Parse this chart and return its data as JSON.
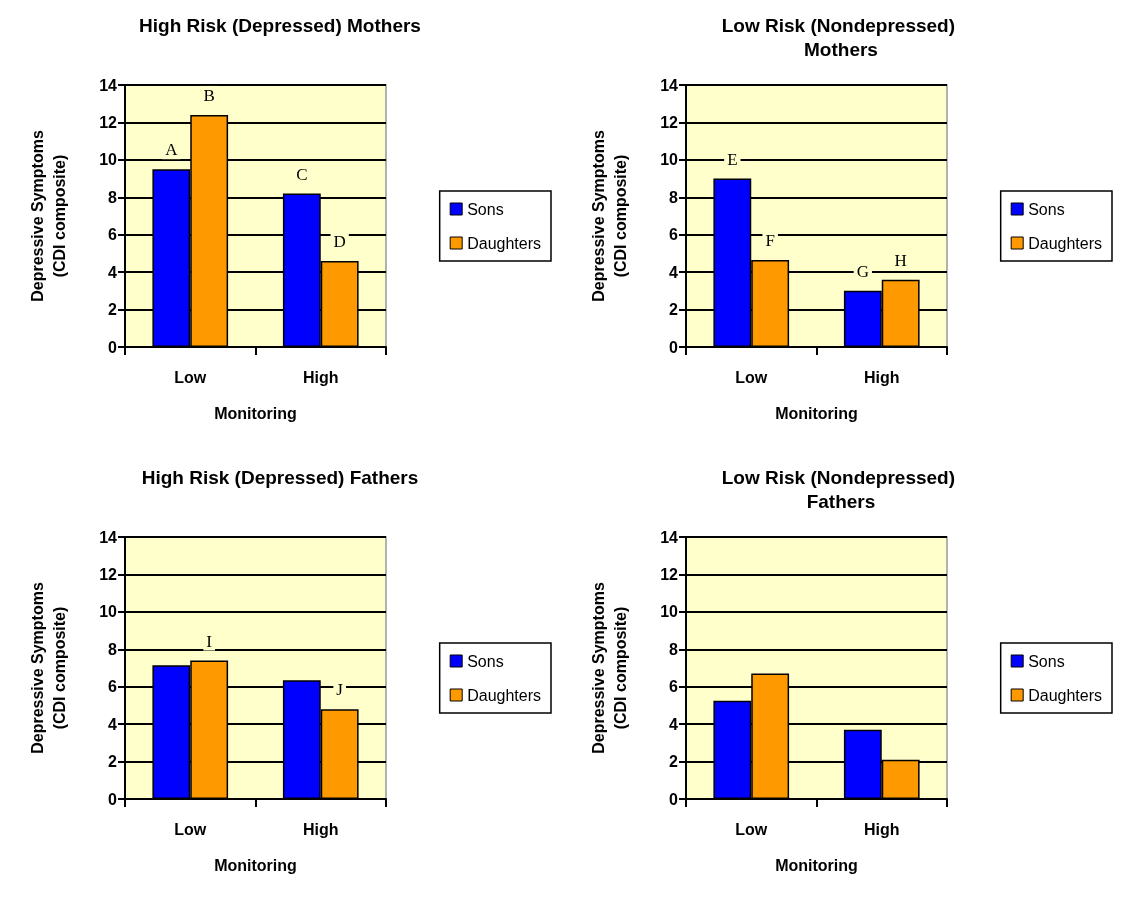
{
  "chart_data": [
    {
      "type": "bar",
      "title": "High Risk (Depressed) Mothers",
      "xlabel": "Monitoring",
      "ylabel": "Depressive Symptoms (CDI composite)",
      "categories": [
        "Low",
        "High"
      ],
      "series": [
        {
          "name": "Sons",
          "color": "#0000ff",
          "values": [
            9.5,
            8.2
          ],
          "value_labels": [
            "A",
            "C"
          ]
        },
        {
          "name": "Daughters",
          "color": "#ff9900",
          "values": [
            12.4,
            4.6
          ],
          "value_labels": [
            "B",
            "D"
          ]
        }
      ],
      "ylim": [
        0,
        14
      ],
      "yticks": [
        0,
        2,
        4,
        6,
        8,
        10,
        12,
        14
      ],
      "grid": "y",
      "legend": "right"
    },
    {
      "type": "bar",
      "title": "Low Risk (Nondepressed) Mothers",
      "xlabel": "Monitoring",
      "ylabel": "Depressive Symptoms (CDI composite)",
      "categories": [
        "Low",
        "High"
      ],
      "series": [
        {
          "name": "Sons",
          "color": "#0000ff",
          "values": [
            9.0,
            3.0
          ],
          "value_labels": [
            "E",
            "G"
          ]
        },
        {
          "name": "Daughters",
          "color": "#ff9900",
          "values": [
            4.65,
            3.6
          ],
          "value_labels": [
            "F",
            "H"
          ]
        }
      ],
      "ylim": [
        0,
        14
      ],
      "yticks": [
        0,
        2,
        4,
        6,
        8,
        10,
        12,
        14
      ],
      "grid": "y",
      "legend": "right"
    },
    {
      "type": "bar",
      "title": "High Risk (Depressed) Fathers",
      "xlabel": "Monitoring",
      "ylabel": "Depressive Symptoms (CDI composite)",
      "categories": [
        "Low",
        "High"
      ],
      "series": [
        {
          "name": "Sons",
          "color": "#0000ff",
          "values": [
            7.15,
            6.35
          ]
        },
        {
          "name": "Daughters",
          "color": "#ff9900",
          "values": [
            7.4,
            4.8
          ],
          "value_labels": [
            "I",
            "J"
          ]
        }
      ],
      "ylim": [
        0,
        14
      ],
      "yticks": [
        0,
        2,
        4,
        6,
        8,
        10,
        12,
        14
      ],
      "grid": "y",
      "legend": "right"
    },
    {
      "type": "bar",
      "title": "Low Risk (Nondepressed) Fathers",
      "xlabel": "Monitoring",
      "ylabel": "Depressive Symptoms (CDI composite)",
      "categories": [
        "Low",
        "High"
      ],
      "series": [
        {
          "name": "Sons",
          "color": "#0000ff",
          "values": [
            5.25,
            3.7
          ]
        },
        {
          "name": "Daughters",
          "color": "#ff9900",
          "values": [
            6.7,
            2.1
          ]
        }
      ],
      "ylim": [
        0,
        14
      ],
      "yticks": [
        0,
        2,
        4,
        6,
        8,
        10,
        12,
        14
      ],
      "grid": "y",
      "legend": "right"
    }
  ]
}
